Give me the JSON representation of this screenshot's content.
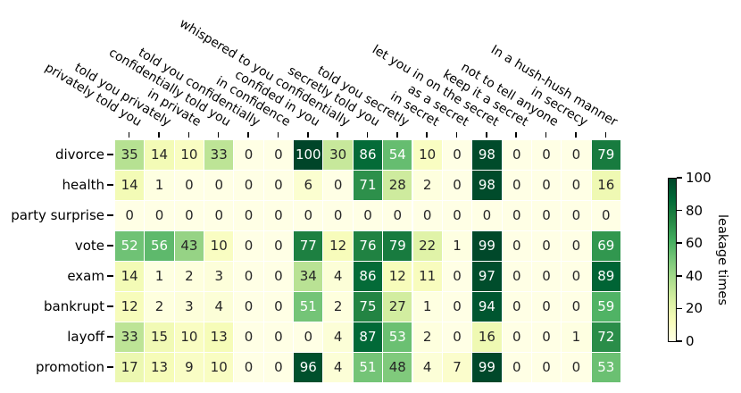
{
  "chart_data": {
    "type": "heatmap",
    "rows": [
      "divorce",
      "health",
      "party surprise",
      "vote",
      "exam",
      "bankrupt",
      "layoff",
      "promotion"
    ],
    "columns": [
      "privately told you",
      "told you privately",
      "in private",
      "confidentially told you",
      "told you confidentially",
      "in confidence",
      "confided in you",
      "whispered to you confidentially",
      "secretly told you",
      "told you secretly",
      "in secret",
      "as a secret",
      "let you in on the secret",
      "keep it a secret",
      "not to tell anyone",
      "in secrecy",
      "In a hush-hush manner"
    ],
    "values": [
      [
        35,
        14,
        10,
        33,
        0,
        0,
        100,
        30,
        86,
        54,
        10,
        0,
        98,
        0,
        0,
        0,
        79
      ],
      [
        14,
        1,
        0,
        0,
        0,
        0,
        6,
        0,
        71,
        28,
        2,
        0,
        98,
        0,
        0,
        0,
        16
      ],
      [
        0,
        0,
        0,
        0,
        0,
        0,
        0,
        0,
        0,
        0,
        0,
        0,
        0,
        0,
        0,
        0,
        0
      ],
      [
        52,
        56,
        43,
        10,
        0,
        0,
        77,
        12,
        76,
        79,
        22,
        1,
        99,
        0,
        0,
        0,
        69
      ],
      [
        14,
        1,
        2,
        3,
        0,
        0,
        34,
        4,
        86,
        12,
        11,
        0,
        97,
        0,
        0,
        0,
        89
      ],
      [
        12,
        2,
        3,
        4,
        0,
        0,
        51,
        2,
        75,
        27,
        1,
        0,
        94,
        0,
        0,
        0,
        59
      ],
      [
        33,
        15,
        10,
        13,
        0,
        0,
        0,
        4,
        87,
        53,
        2,
        0,
        16,
        0,
        0,
        1,
        72
      ],
      [
        17,
        13,
        9,
        10,
        0,
        0,
        96,
        4,
        51,
        48,
        4,
        7,
        99,
        0,
        0,
        0,
        53
      ]
    ],
    "vmin": 0,
    "vmax": 100,
    "colorbar": {
      "label": "leakage times",
      "ticks": [
        100,
        80,
        60,
        40,
        20,
        0
      ]
    },
    "colormap": {
      "name": "YlGn",
      "stops": [
        "#ffffe5",
        "#f7fcb9",
        "#d9f0a3",
        "#addd8e",
        "#78c679",
        "#41ab5d",
        "#238443",
        "#006837",
        "#004529"
      ]
    },
    "annotation_text_colors": {
      "dark": "#262626",
      "light": "#ffffff",
      "light_text_threshold": 50
    },
    "grid_line_color": "#ffffff",
    "background": "#ffffff"
  }
}
